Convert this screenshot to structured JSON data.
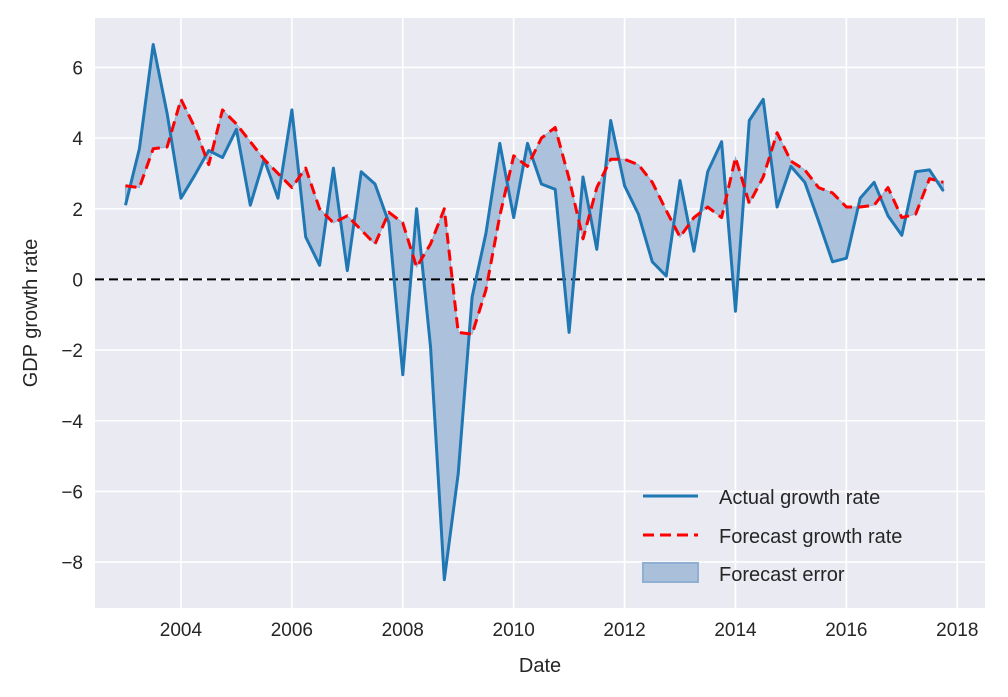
{
  "chart_data": {
    "type": "line",
    "title": "",
    "xlabel": "Date",
    "ylabel": "GDP growth rate",
    "xlim": [
      2002.45,
      2018.5
    ],
    "ylim": [
      -9.3,
      7.4
    ],
    "grid": true,
    "x_ticks": [
      "2004",
      "2006",
      "2008",
      "2010",
      "2012",
      "2014",
      "2016",
      "2018"
    ],
    "x_tick_values": [
      2004,
      2006,
      2008,
      2010,
      2012,
      2014,
      2016,
      2018
    ],
    "y_ticks": [
      "6",
      "4",
      "2",
      "0",
      "−2",
      "−4",
      "−6",
      "−8"
    ],
    "y_tick_values": [
      6,
      4,
      2,
      0,
      -2,
      -4,
      -6,
      -8
    ],
    "x_start": 2003.0,
    "x_step": 0.25,
    "reference_line": 0,
    "legend_position": "lower-right",
    "series": [
      {
        "name": "Actual growth rate",
        "style": "solid",
        "color": "#1f77b4",
        "values": [
          2.1,
          3.7,
          6.65,
          4.7,
          2.3,
          2.95,
          3.65,
          3.45,
          4.25,
          2.1,
          3.4,
          2.3,
          4.8,
          1.2,
          0.4,
          3.15,
          0.25,
          3.05,
          2.7,
          1.6,
          -2.7,
          2.0,
          -1.9,
          -8.5,
          -5.5,
          -0.5,
          1.3,
          3.85,
          1.75,
          3.85,
          2.7,
          2.55,
          -1.5,
          2.9,
          0.85,
          4.5,
          2.65,
          1.85,
          0.5,
          0.1,
          2.8,
          0.8,
          3.05,
          3.9,
          -0.9,
          4.5,
          5.1,
          2.05,
          3.2,
          2.75,
          1.65,
          0.5,
          0.6,
          2.3,
          2.75,
          1.8,
          1.25,
          3.05,
          3.1,
          2.5
        ]
      },
      {
        "name": "Forecast growth rate",
        "style": "dashed",
        "color": "#ff0000",
        "values": [
          2.65,
          2.6,
          3.7,
          3.75,
          5.1,
          4.3,
          3.25,
          4.8,
          4.4,
          3.9,
          3.4,
          3.0,
          2.6,
          3.15,
          2.0,
          1.6,
          1.8,
          1.4,
          1.0,
          1.9,
          1.6,
          0.35,
          1.0,
          2.0,
          -1.5,
          -1.55,
          -0.3,
          1.8,
          3.5,
          3.2,
          4.0,
          4.3,
          2.85,
          1.15,
          2.6,
          3.4,
          3.4,
          3.25,
          2.75,
          1.95,
          1.2,
          1.75,
          2.05,
          1.75,
          3.45,
          2.15,
          2.9,
          4.15,
          3.35,
          3.1,
          2.6,
          2.45,
          2.05,
          2.05,
          2.1,
          2.6,
          1.75,
          1.85,
          2.85,
          2.75
        ]
      }
    ],
    "fill": {
      "name": "Forecast error",
      "color": "#a9bfda",
      "between": [
        "Actual growth rate",
        "Forecast growth rate"
      ]
    },
    "legend": [
      "Actual growth rate",
      "Forecast growth rate",
      "Forecast error"
    ],
    "colors": {
      "background": "#eaeaf2",
      "grid": "#ffffff",
      "actual": "#1f77b4",
      "forecast": "#ff0000",
      "fill": "#a9bfda",
      "fill_edge": "#8fb0d3",
      "zero_line": "#000000"
    }
  }
}
